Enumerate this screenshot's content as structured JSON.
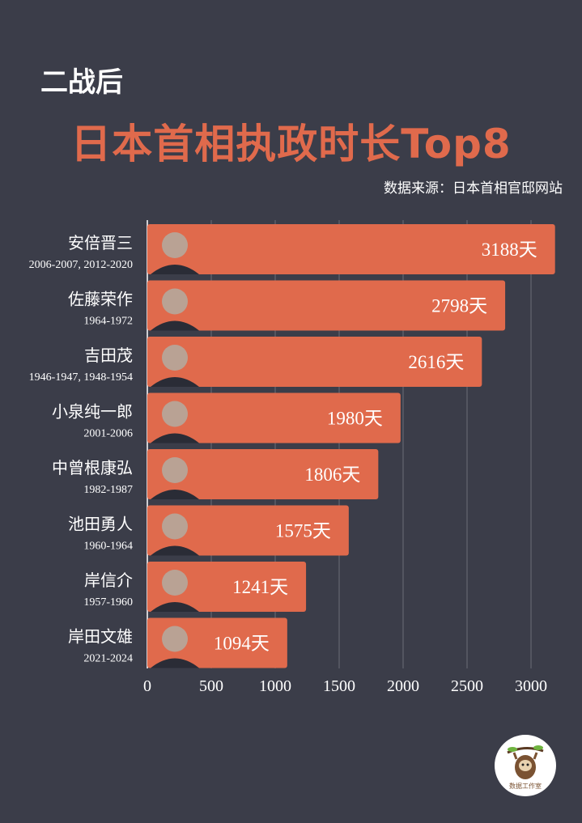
{
  "header": {
    "pre_title": "二战后",
    "title": "日本首相执政时长Top8",
    "source": "数据来源：日本首相官邸网站"
  },
  "colors": {
    "bar": "#e06a4c",
    "background": "#3b3d49",
    "grid": "#6b6d78",
    "text": "#ffffff"
  },
  "chart_data": {
    "type": "bar",
    "orientation": "horizontal",
    "title": "日本首相执政时长Top8",
    "categories": [
      "安倍晋三",
      "佐藤荣作",
      "吉田茂",
      "小泉纯一郎",
      "中曾根康弘",
      "池田勇人",
      "岸信介",
      "岸田文雄"
    ],
    "periods": [
      "2006-2007, 2012-2020",
      "1964-1972",
      "1946-1947, 1948-1954",
      "2001-2006",
      "1982-1987",
      "1960-1964",
      "1957-1960",
      "2021-2024"
    ],
    "values": [
      3188,
      2798,
      2616,
      1980,
      1806,
      1575,
      1241,
      1094
    ],
    "value_suffix": "天",
    "xlim": [
      0,
      3250
    ],
    "ticks": [
      0,
      500,
      1000,
      1500,
      2000,
      2500,
      3000
    ],
    "grid": true
  },
  "logo": {
    "icon": "sloth-logo-icon",
    "text": "数据工作室"
  }
}
